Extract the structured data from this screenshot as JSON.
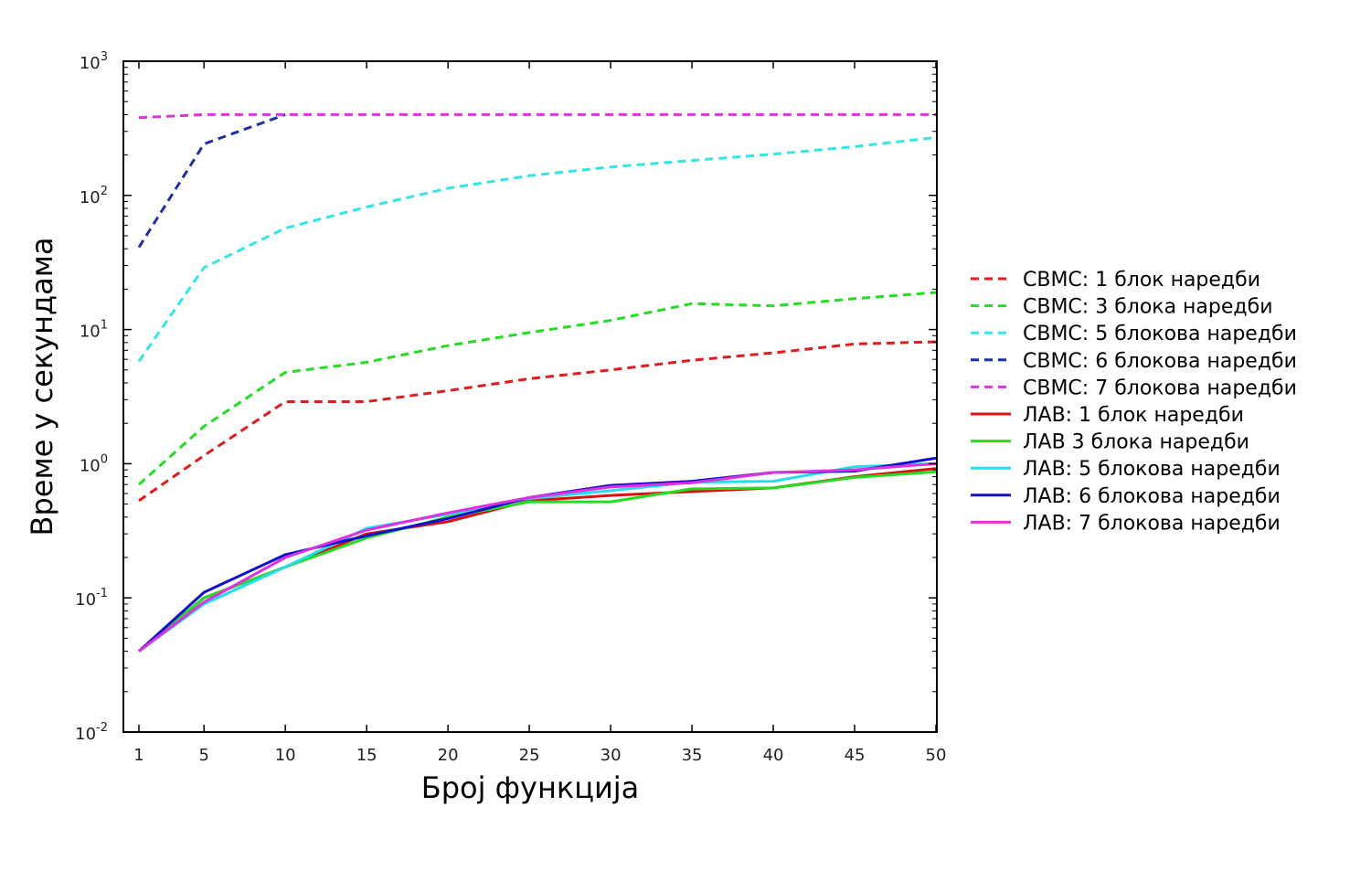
{
  "chart_data": {
    "type": "line",
    "xlabel": "Број функција",
    "ylabel": "Време у секундама",
    "x": [
      1,
      5,
      10,
      15,
      20,
      25,
      30,
      35,
      40,
      45,
      50
    ],
    "xticks": [
      "1",
      "5",
      "10",
      "15",
      "20",
      "25",
      "30",
      "35",
      "40",
      "45",
      "50"
    ],
    "yscale": "log",
    "ylim": [
      0.01,
      1000
    ],
    "yticks": [
      {
        "base": "10",
        "exp": "-2"
      },
      {
        "base": "10",
        "exp": "-1"
      },
      {
        "base": "10",
        "exp": "0"
      },
      {
        "base": "10",
        "exp": "1"
      },
      {
        "base": "10",
        "exp": "2"
      },
      {
        "base": "10",
        "exp": "3"
      }
    ],
    "grid": false,
    "legend_position": "right",
    "series": [
      {
        "name": "СВМС: 1 блок наредби",
        "color": "#e41a1c",
        "style": "dashed",
        "values": [
          0.53,
          1.15,
          2.9,
          2.9,
          3.5,
          4.3,
          5.0,
          5.9,
          6.7,
          7.8,
          8.1
        ]
      },
      {
        "name": "СВМС: 3 блока наредби",
        "color": "#22dd22",
        "style": "dashed",
        "values": [
          0.7,
          1.9,
          4.8,
          5.7,
          7.6,
          9.5,
          11.7,
          15.6,
          15.0,
          17.0,
          18.9
        ]
      },
      {
        "name": "СВМС: 5 блокова наредби",
        "color": "#33e5e5",
        "style": "dashed",
        "values": [
          5.8,
          29,
          57,
          82,
          113,
          140,
          163,
          182,
          203,
          231,
          270
        ]
      },
      {
        "name": "СВМС: 6 блокова наредби",
        "color": "#1f2fa6",
        "style": "dashed",
        "values": [
          41,
          242,
          400,
          null,
          null,
          null,
          null,
          null,
          null,
          null,
          null
        ]
      },
      {
        "name": "СВМС: 7 блокова наредби",
        "color": "#e030e0",
        "style": "dashed",
        "values": [
          380,
          400,
          400,
          400,
          400,
          400,
          400,
          400,
          400,
          400,
          400
        ]
      },
      {
        "name": "ЛАВ: 1 блок наредби",
        "color": "#d91010",
        "style": "solid",
        "values": [
          0.04,
          0.1,
          0.17,
          0.3,
          0.37,
          0.53,
          0.58,
          0.62,
          0.66,
          0.8,
          0.92
        ]
      },
      {
        "name": "ЛАВ 3 блока наредби",
        "color": "#22dd22",
        "style": "solid",
        "values": [
          0.04,
          0.1,
          0.17,
          0.28,
          0.4,
          0.52,
          0.52,
          0.65,
          0.66,
          0.79,
          0.87
        ]
      },
      {
        "name": "ЛАВ: 5 блокова наредби",
        "color": "#22ddee",
        "style": "solid",
        "values": [
          0.04,
          0.09,
          0.17,
          0.33,
          0.42,
          0.55,
          0.63,
          0.73,
          0.74,
          0.95,
          1.0
        ]
      },
      {
        "name": "ЛАВ: 6 блокова наредби",
        "color": "#1010cc",
        "style": "solid",
        "values": [
          0.04,
          0.11,
          0.21,
          0.29,
          0.39,
          0.56,
          0.69,
          0.74,
          0.86,
          0.88,
          1.1
        ]
      },
      {
        "name": "ЛАВ: 7 блокова наредби",
        "color": "#e030e0",
        "style": "solid",
        "values": [
          0.04,
          0.093,
          0.2,
          0.32,
          0.43,
          0.56,
          0.67,
          0.72,
          0.86,
          0.9,
          1.0
        ]
      }
    ]
  }
}
